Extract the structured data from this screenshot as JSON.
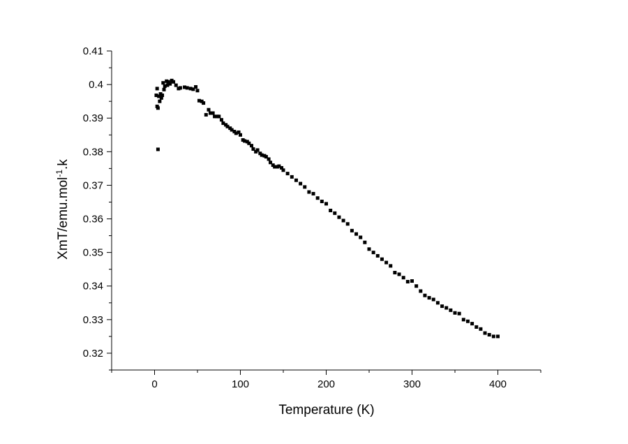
{
  "chart_data": {
    "type": "scatter",
    "x_label": "Temperature (K)",
    "y_label": {
      "text": "XmT/emu.mol",
      "superscript": "-1",
      "suffix": ".k"
    },
    "series": [
      {
        "color": "#000000",
        "x": [
          2,
          3,
          3,
          4,
          4,
          5,
          6,
          7,
          8,
          9,
          10,
          11,
          12,
          14,
          15,
          16,
          18,
          20,
          22,
          25,
          28,
          30,
          35,
          38,
          42,
          45,
          48,
          50,
          52,
          55,
          57,
          60,
          63,
          65,
          68,
          70,
          73,
          75,
          78,
          80,
          83,
          85,
          88,
          90,
          93,
          95,
          98,
          100,
          103,
          105,
          108,
          110,
          113,
          115,
          118,
          120,
          123,
          125,
          128,
          130,
          133,
          135,
          138,
          140,
          143,
          145,
          148,
          150,
          155,
          160,
          165,
          170,
          175,
          180,
          185,
          190,
          195,
          200,
          205,
          210,
          215,
          220,
          225,
          230,
          235,
          240,
          245,
          250,
          255,
          260,
          265,
          270,
          275,
          280,
          285,
          290,
          295,
          300,
          305,
          310,
          315,
          320,
          325,
          330,
          335,
          340,
          345,
          350,
          355,
          360,
          365,
          370,
          375,
          380,
          385,
          390,
          395,
          400
        ],
        "values": [
          0.3968,
          0.3988,
          0.3935,
          0.393,
          0.3807,
          0.3965,
          0.395,
          0.3972,
          0.396,
          0.3968,
          0.4005,
          0.3985,
          0.3995,
          0.401,
          0.3998,
          0.4008,
          0.4002,
          0.4012,
          0.4008,
          0.3998,
          0.3988,
          0.399,
          0.3992,
          0.399,
          0.3988,
          0.3986,
          0.3993,
          0.3982,
          0.3952,
          0.395,
          0.3945,
          0.391,
          0.3925,
          0.3915,
          0.3915,
          0.3905,
          0.3905,
          0.3905,
          0.3895,
          0.3885,
          0.388,
          0.3875,
          0.387,
          0.3865,
          0.386,
          0.3855,
          0.3858,
          0.385,
          0.3835,
          0.3832,
          0.383,
          0.3825,
          0.3818,
          0.3808,
          0.38,
          0.3805,
          0.3795,
          0.379,
          0.3788,
          0.3785,
          0.3778,
          0.3768,
          0.376,
          0.3755,
          0.3755,
          0.3757,
          0.3752,
          0.3745,
          0.3735,
          0.3725,
          0.3715,
          0.3705,
          0.3695,
          0.368,
          0.3675,
          0.3662,
          0.3652,
          0.3645,
          0.3625,
          0.3617,
          0.3605,
          0.3595,
          0.3585,
          0.3565,
          0.3555,
          0.3545,
          0.353,
          0.351,
          0.35,
          0.349,
          0.348,
          0.347,
          0.346,
          0.344,
          0.3435,
          0.3425,
          0.3413,
          0.3415,
          0.34,
          0.3385,
          0.3372,
          0.3365,
          0.336,
          0.335,
          0.334,
          0.3335,
          0.3328,
          0.332,
          0.3318,
          0.33,
          0.3295,
          0.3288,
          0.3278,
          0.3272,
          0.326,
          0.3255,
          0.325,
          0.325
        ]
      }
    ],
    "xlim": [
      -50,
      450
    ],
    "xticks": [
      0,
      100,
      200,
      300,
      400
    ],
    "xminor_ticks": [
      -50,
      50,
      150,
      250,
      350,
      450
    ],
    "ylim": [
      0.315,
      0.41
    ],
    "yticks": [
      0.32,
      0.33,
      0.34,
      0.35,
      0.36,
      0.37,
      0.38,
      0.39,
      0.4,
      0.41
    ],
    "yminor_ticks": [
      0.315,
      0.325,
      0.335,
      0.345,
      0.355,
      0.365,
      0.375,
      0.385,
      0.395,
      0.405
    ]
  }
}
